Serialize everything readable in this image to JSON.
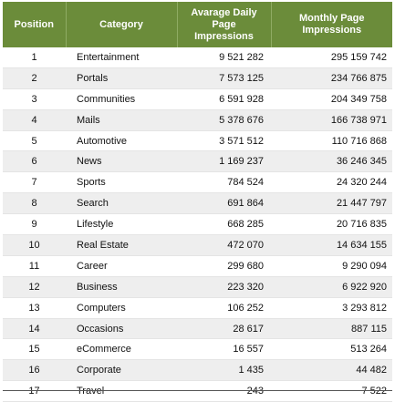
{
  "headers": {
    "position": "Position",
    "category": "Category",
    "average_daily": "Avarage Daily Page Impressions",
    "monthly": "Monthly Page Impressions"
  },
  "rows": [
    {
      "position": "1",
      "category": "Entertainment",
      "average_daily": "9 521 282",
      "monthly": "295 159 742"
    },
    {
      "position": "2",
      "category": "Portals",
      "average_daily": "7 573 125",
      "monthly": "234 766 875"
    },
    {
      "position": "3",
      "category": "Communities",
      "average_daily": "6 591 928",
      "monthly": "204 349 758"
    },
    {
      "position": "4",
      "category": "Mails",
      "average_daily": "5 378 676",
      "monthly": "166 738 971"
    },
    {
      "position": "5",
      "category": "Automotive",
      "average_daily": "3 571 512",
      "monthly": "110 716 868"
    },
    {
      "position": "6",
      "category": "News",
      "average_daily": "1 169 237",
      "monthly": "36 246 345"
    },
    {
      "position": "7",
      "category": "Sports",
      "average_daily": "784 524",
      "monthly": "24 320 244"
    },
    {
      "position": "8",
      "category": "Search",
      "average_daily": "691 864",
      "monthly": "21 447 797"
    },
    {
      "position": "9",
      "category": "Lifestyle",
      "average_daily": "668 285",
      "monthly": "20 716 835"
    },
    {
      "position": "10",
      "category": "Real Estate",
      "average_daily": "472 070",
      "monthly": "14 634 155"
    },
    {
      "position": "11",
      "category": "Career",
      "average_daily": "299 680",
      "monthly": "9 290 094"
    },
    {
      "position": "12",
      "category": "Business",
      "average_daily": "223 320",
      "monthly": "6 922 920"
    },
    {
      "position": "13",
      "category": "Computers",
      "average_daily": "106 252",
      "monthly": "3 293 812"
    },
    {
      "position": "14",
      "category": "Occasions",
      "average_daily": "28 617",
      "monthly": "887 115"
    },
    {
      "position": "15",
      "category": "eCommerce",
      "average_daily": "16 557",
      "monthly": "513 264"
    },
    {
      "position": "16",
      "category": "Corporate",
      "average_daily": "1 435",
      "monthly": "44 482"
    },
    {
      "position": "17",
      "category": "Travel",
      "average_daily": "243",
      "monthly": "7 522"
    }
  ],
  "colors": {
    "header_background": "#6b8c3a",
    "header_text": "#ffffff",
    "alternate_row": "#eeeeee"
  }
}
